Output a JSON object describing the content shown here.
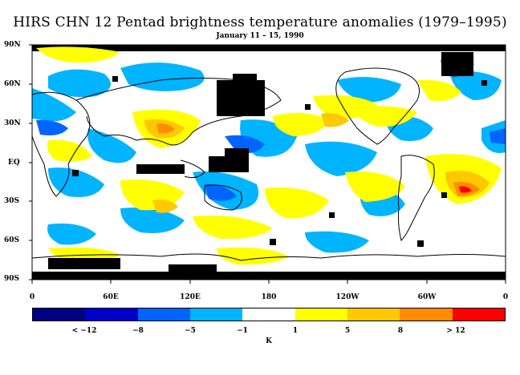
{
  "title": "HIRS CHN 12 Pentad brightness temperature anomalies (1979–1995)",
  "subtitle": "January 11 – 15, 1990",
  "lat_labels": [
    "90N",
    "60N",
    "30N",
    "EQ",
    "30S",
    "60S",
    "90S"
  ],
  "lon_labels": [
    "0",
    "60E",
    "120E",
    "180",
    "120W",
    "60W",
    "0"
  ],
  "colorbar": {
    "colors": [
      "#000080",
      "#0000c8",
      "#0064ff",
      "#00b4ff",
      "#ffffff",
      "#ffff00",
      "#ffc800",
      "#ff8c00",
      "#ff0000"
    ],
    "tick_labels": [
      "< −12",
      "−8",
      "−5",
      "−1",
      "1",
      "5",
      "8",
      "> 12"
    ],
    "unit": "K"
  },
  "missing_data_color": "#000000"
}
